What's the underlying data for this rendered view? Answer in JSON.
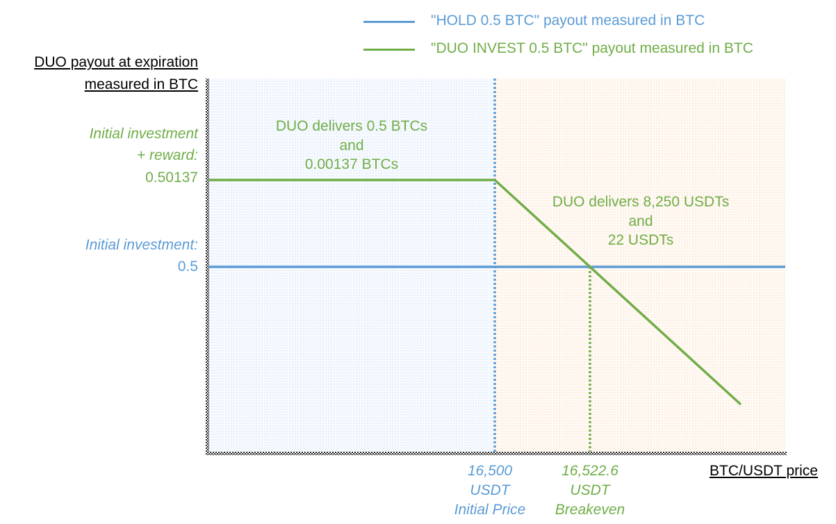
{
  "legend": [
    {
      "label": "\"HOLD 0.5 BTC\" payout measured in BTC",
      "color": "#5b9bd5"
    },
    {
      "label": "\"DUO INVEST 0.5 BTC\" payout measured in BTC",
      "color": "#70ad47"
    }
  ],
  "y_title": [
    "DUO payout at expiration",
    "measured in BTC"
  ],
  "y_labels": {
    "reward_caption": [
      "Initial investment",
      "+ reward:"
    ],
    "reward_value": "0.50137",
    "initial_caption": "Initial investment:",
    "initial_value": "0.5"
  },
  "regions": {
    "left_text": [
      "DUO delivers 0.5 BTCs",
      "and",
      "0.00137 BTCs"
    ],
    "right_text": [
      "DUO delivers 8,250 USDTs",
      "and",
      "22 USDTs"
    ]
  },
  "x_labels": {
    "initial_price": [
      "16,500",
      "USDT",
      "Initial Price"
    ],
    "breakeven": [
      "16,522.6",
      "USDT",
      "Breakeven"
    ]
  },
  "x_title": "BTC/USDT price",
  "colors": {
    "blue": "#5b9bd5",
    "green": "#70ad47",
    "left_region_tint": "#eaf2fb",
    "right_region_tint": "#fcefe3"
  },
  "chart_data": {
    "type": "line",
    "xlabel": "BTC/USDT price",
    "ylabel": "DUO payout at expiration measured in BTC",
    "series": [
      {
        "name": "\"HOLD 0.5 BTC\" payout measured in BTC",
        "x": [
          16500,
          16522.6
        ],
        "y": [
          0.5,
          0.5
        ]
      },
      {
        "name": "\"DUO INVEST 0.5 BTC\" payout measured in BTC",
        "x": [
          16500,
          16522.6
        ],
        "y": [
          0.50137,
          0.5
        ]
      }
    ],
    "vlines": [
      16500,
      16522.6
    ]
  }
}
